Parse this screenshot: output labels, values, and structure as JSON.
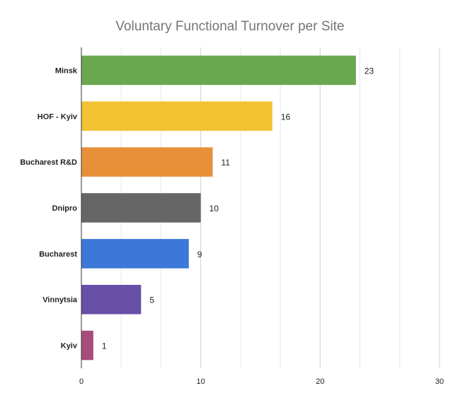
{
  "chart_data": {
    "type": "bar",
    "orientation": "horizontal",
    "title": "Voluntary Functional Turnover per Site",
    "categories": [
      "Minsk",
      "HOF - Kyiv",
      "Bucharest R&D",
      "Dnipro",
      "Bucharest",
      "Vinnytsia",
      "Kyiv"
    ],
    "values": [
      23,
      16,
      11,
      10,
      9,
      5,
      1
    ],
    "colors": [
      "#6aa84f",
      "#f1c232",
      "#e69138",
      "#666666",
      "#3c78d8",
      "#674ea7",
      "#a64d79"
    ],
    "xlim": [
      0,
      30
    ],
    "xticks": [
      0,
      10,
      20,
      30
    ],
    "minor_gridlines": 2,
    "grid": true,
    "legend": "none",
    "data_labels": true
  }
}
